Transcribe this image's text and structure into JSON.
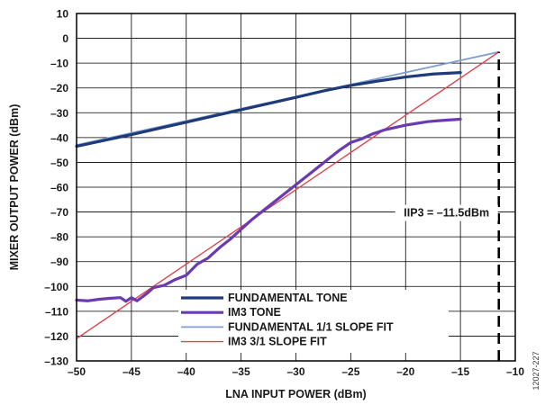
{
  "figure_id": "12027-227",
  "chart_data": {
    "type": "line",
    "xlabel": "LNA INPUT POWER (dBm)",
    "ylabel": "MIXER OUTPUT POWER (dBm)",
    "xlim": [
      -50,
      -10
    ],
    "ylim": [
      -130,
      10
    ],
    "x_ticks": [
      -50,
      -45,
      -40,
      -35,
      -30,
      -25,
      -20,
      -15,
      -10
    ],
    "y_ticks": [
      10,
      0,
      -10,
      -20,
      -30,
      -40,
      -50,
      -60,
      -70,
      -80,
      -90,
      -100,
      -110,
      -120,
      -130
    ],
    "x_tick_labels": [
      "–50",
      "–45",
      "–40",
      "–35",
      "–30",
      "–25",
      "–20",
      "–15",
      "–10"
    ],
    "y_tick_labels": [
      "10",
      "0",
      "–10",
      "–20",
      "–30",
      "–40",
      "–50",
      "–60",
      "–70",
      "–80",
      "–90",
      "–100",
      "–110",
      "–120",
      "–130"
    ],
    "grid": true,
    "legend_position": "bottom-center",
    "series": [
      {
        "name": "FUNDAMENTAL TONE",
        "color": "#1f3a7a",
        "points": [
          [
            -50,
            -43.5
          ],
          [
            -45,
            -38.8
          ],
          [
            -40,
            -33.8
          ],
          [
            -35,
            -28.8
          ],
          [
            -30,
            -23.8
          ],
          [
            -27.5,
            -21.2
          ],
          [
            -25,
            -19.0
          ],
          [
            -22.5,
            -17.2
          ],
          [
            -20,
            -15.6
          ],
          [
            -17.5,
            -14.4
          ],
          [
            -15,
            -13.8
          ]
        ]
      },
      {
        "name": "IM3 TONE",
        "color": "#6a3bb0",
        "points": [
          [
            -50,
            -105.5
          ],
          [
            -49,
            -105.8
          ],
          [
            -48,
            -105.2
          ],
          [
            -47,
            -104.8
          ],
          [
            -46,
            -104.5
          ],
          [
            -45.5,
            -106
          ],
          [
            -45,
            -104.5
          ],
          [
            -44.5,
            -105.8
          ],
          [
            -44,
            -104.2
          ],
          [
            -43.5,
            -102.5
          ],
          [
            -43,
            -100.5
          ],
          [
            -42,
            -99.5
          ],
          [
            -41,
            -97.2
          ],
          [
            -40,
            -95.5
          ],
          [
            -39,
            -91
          ],
          [
            -38,
            -88.5
          ],
          [
            -37,
            -84.5
          ],
          [
            -36,
            -81
          ],
          [
            -35,
            -77
          ],
          [
            -34,
            -73
          ],
          [
            -33,
            -69.5
          ],
          [
            -32,
            -66
          ],
          [
            -31,
            -62.5
          ],
          [
            -30,
            -59
          ],
          [
            -29,
            -55.5
          ],
          [
            -28,
            -52
          ],
          [
            -27,
            -48.5
          ],
          [
            -26,
            -45
          ],
          [
            -25,
            -42
          ],
          [
            -24,
            -40.5
          ],
          [
            -23,
            -38.5
          ],
          [
            -22,
            -37
          ],
          [
            -21,
            -36
          ],
          [
            -20,
            -35
          ],
          [
            -19,
            -34.3
          ],
          [
            -18,
            -33.6
          ],
          [
            -17,
            -33.2
          ],
          [
            -16,
            -32.9
          ],
          [
            -15,
            -32.6
          ]
        ]
      },
      {
        "name": "FUNDAMENTAL 1/1 SLOPE FIT",
        "color": "#7f9fd0",
        "points": [
          [
            -50,
            -43.0
          ],
          [
            -11.5,
            -5.5
          ]
        ]
      },
      {
        "name": "IM3 3/1 SLOPE FIT",
        "color": "#e0454f",
        "points": [
          [
            -50,
            -121
          ],
          [
            -11.5,
            -5.5
          ]
        ]
      }
    ],
    "annotations": [
      {
        "text": "IIP3 = –11.5dBm",
        "x": -11.5,
        "y": -70
      }
    ],
    "reference_lines": [
      {
        "orientation": "vertical",
        "x": -11.5,
        "from_y": -130,
        "to_y": -5.5,
        "style": "dashed"
      }
    ]
  }
}
